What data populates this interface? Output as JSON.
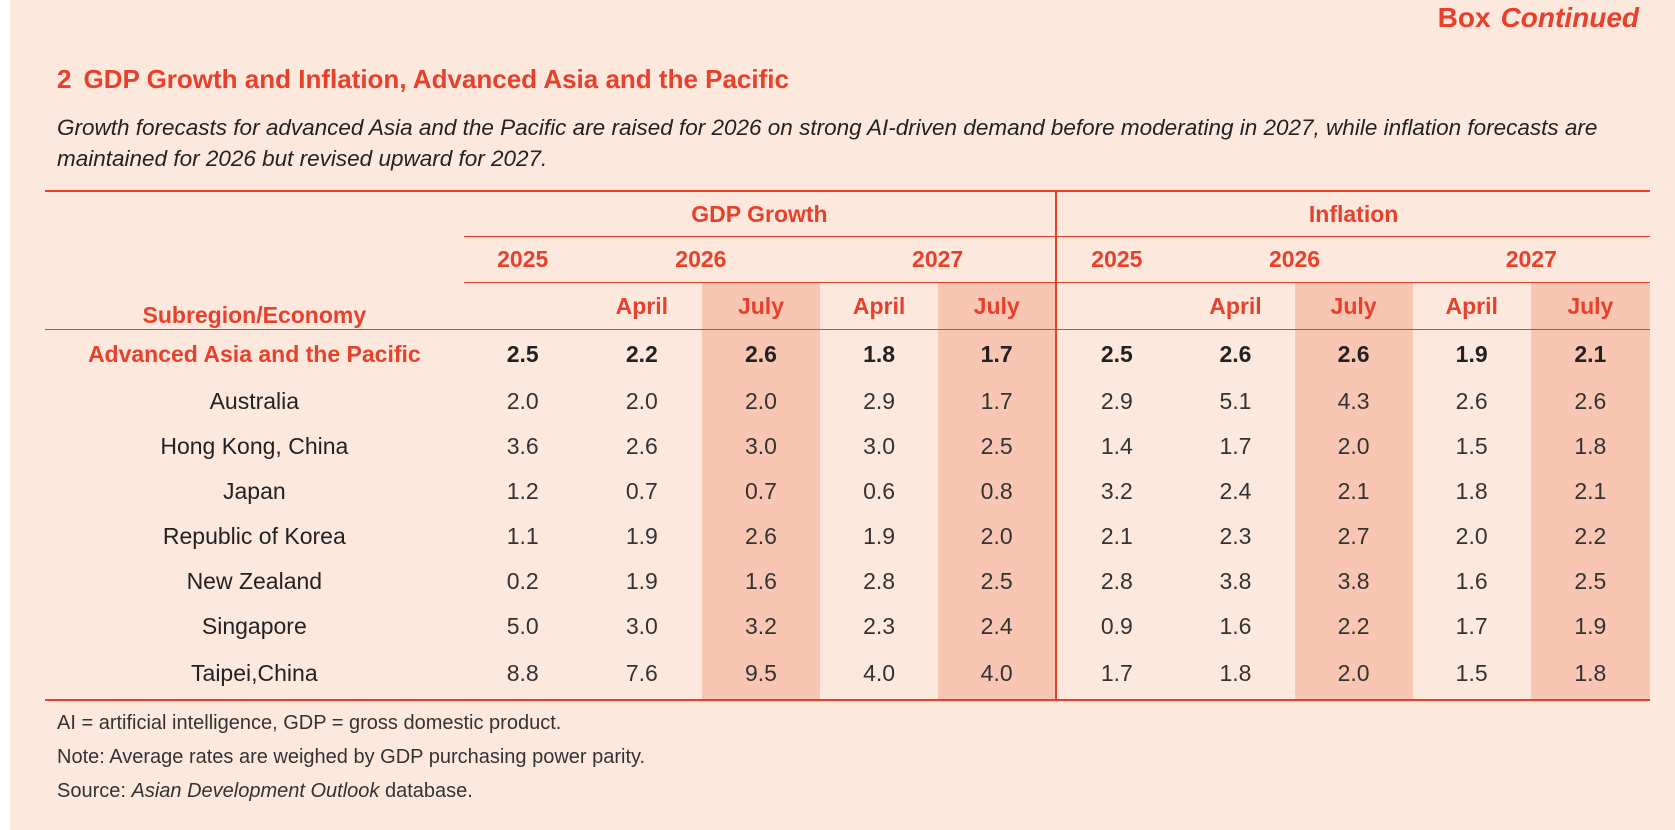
{
  "box": {
    "label": "Box",
    "continued": "Continued"
  },
  "title": {
    "number": "2",
    "text": "GDP Growth and Inflation, Advanced Asia and the Pacific"
  },
  "subtitle": "Growth forecasts for advanced Asia and the Pacific are raised for 2026 on strong AI-driven demand before moderating in 2027, while inflation forecasts are maintained for 2026 but revised upward for 2027.",
  "table": {
    "row_header": "Subregion/Economy",
    "groups": [
      "GDP Growth",
      "Inflation"
    ],
    "years": [
      "2025",
      "2026",
      "2027"
    ],
    "months": [
      "April",
      "July"
    ],
    "rows": [
      {
        "name": "Advanced Asia and the Pacific",
        "values": [
          "2.5",
          "2.2",
          "2.6",
          "1.8",
          "1.7",
          "2.5",
          "2.6",
          "2.6",
          "1.9",
          "2.1"
        ]
      },
      {
        "name": "Australia",
        "values": [
          "2.0",
          "2.0",
          "2.0",
          "2.9",
          "1.7",
          "2.9",
          "5.1",
          "4.3",
          "2.6",
          "2.6"
        ]
      },
      {
        "name": "Hong Kong, China",
        "values": [
          "3.6",
          "2.6",
          "3.0",
          "3.0",
          "2.5",
          "1.4",
          "1.7",
          "2.0",
          "1.5",
          "1.8"
        ]
      },
      {
        "name": "Japan",
        "values": [
          "1.2",
          "0.7",
          "0.7",
          "0.6",
          "0.8",
          "3.2",
          "2.4",
          "2.1",
          "1.8",
          "2.1"
        ]
      },
      {
        "name": "Republic of Korea",
        "values": [
          "1.1",
          "1.9",
          "2.6",
          "1.9",
          "2.0",
          "2.1",
          "2.3",
          "2.7",
          "2.0",
          "2.2"
        ]
      },
      {
        "name": "New Zealand",
        "values": [
          "0.2",
          "1.9",
          "1.6",
          "2.8",
          "2.5",
          "2.8",
          "3.8",
          "3.8",
          "1.6",
          "2.5"
        ]
      },
      {
        "name": "Singapore",
        "values": [
          "5.0",
          "3.0",
          "3.2",
          "2.3",
          "2.4",
          "0.9",
          "1.6",
          "2.2",
          "1.7",
          "1.9"
        ]
      },
      {
        "name": "Taipei,China",
        "values": [
          "8.8",
          "7.6",
          "9.5",
          "4.0",
          "4.0",
          "1.7",
          "1.8",
          "2.0",
          "1.5",
          "1.8"
        ]
      }
    ]
  },
  "notes": {
    "abbrev": "AI = artificial intelligence, GDP = gross domestic product.",
    "note": "Note: Average rates are weighed by GDP purchasing power parity.",
    "source_prefix": "Source: ",
    "source_title": "Asian Development Outlook",
    "source_suffix": " database."
  },
  "colors": {
    "accent": "#e8402a",
    "panel_bg": "#fde8de",
    "highlight": "#f8c6b2"
  }
}
